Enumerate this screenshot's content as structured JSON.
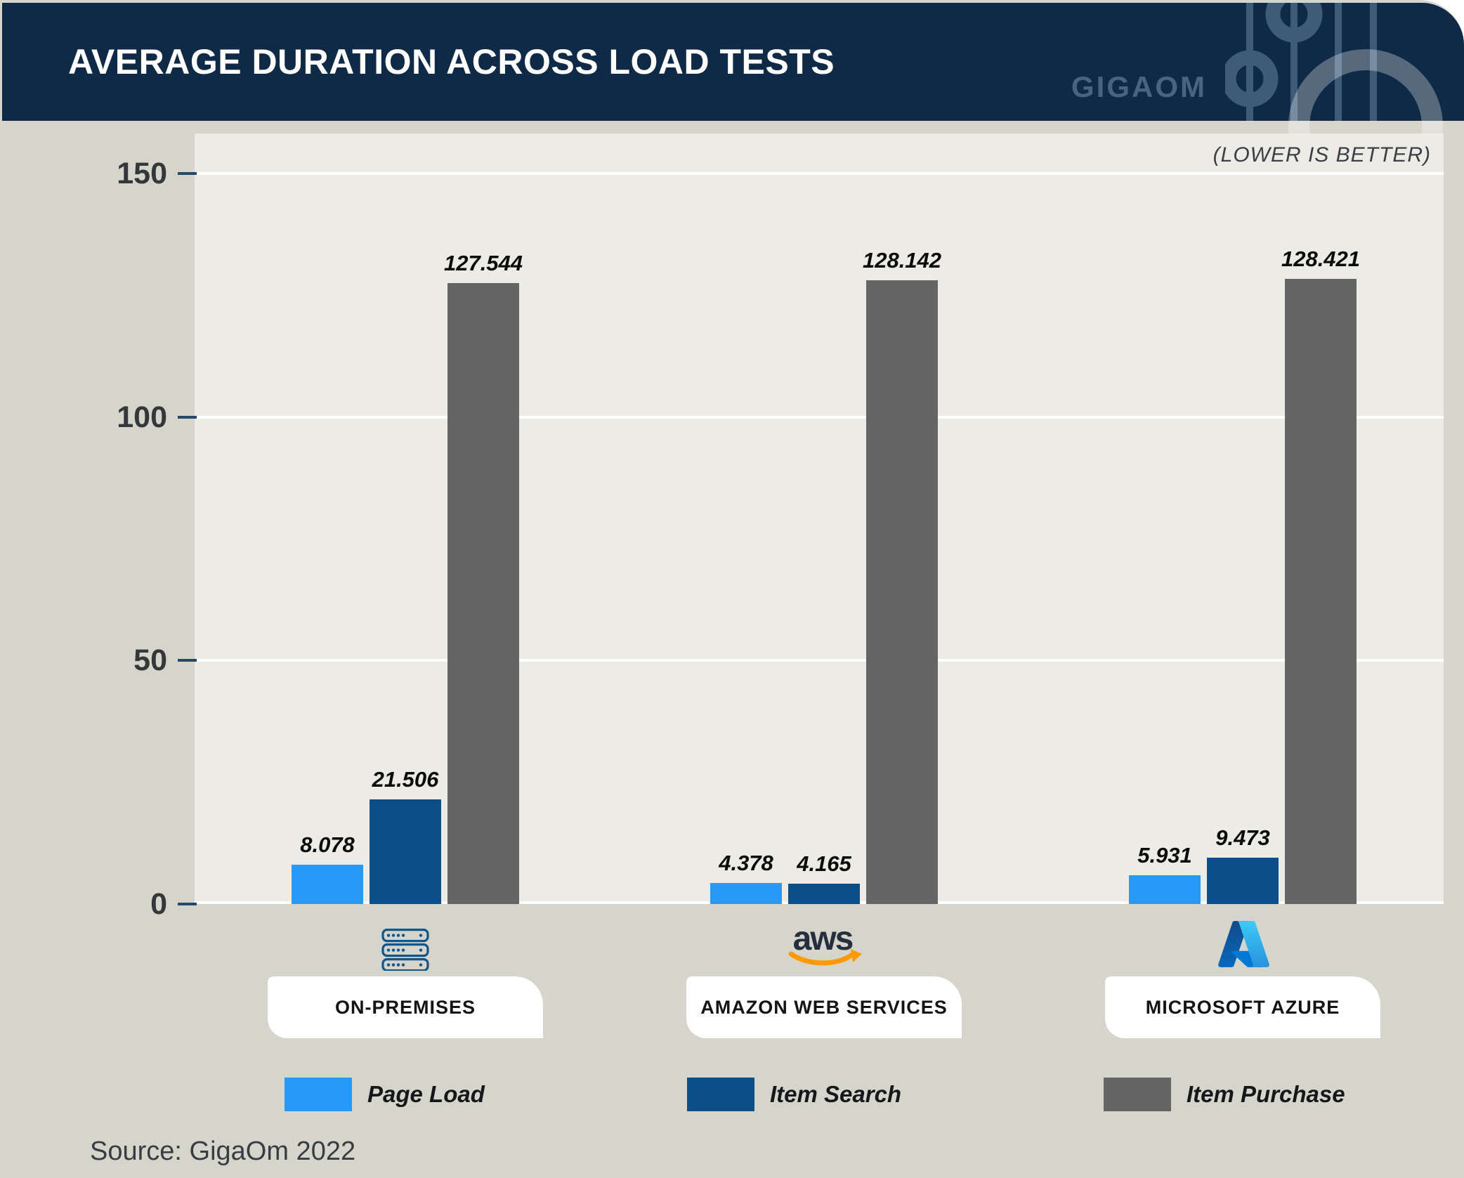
{
  "header": {
    "title": "AVERAGE DURATION ACROSS LOAD TESTS",
    "brand": "GIGAOM"
  },
  "annotation": "(LOWER IS BETTER)",
  "source": "Source: GigaOm 2022",
  "colors": {
    "header_background": "#0F2A46",
    "card_background": "#D6D5CC",
    "plot_background": "#ECEBE6",
    "page_load": "#2799F9",
    "item_search": "#0C4E87",
    "item_purchase": "#656565",
    "aws_smile_orange": "#FF9900",
    "server_icon_blue": "#10558C"
  },
  "icons": {
    "on_premises": "server-stack-icon",
    "amazon_web_services": "aws-logo-icon",
    "microsoft_azure": "azure-logo-icon",
    "brand": "gigaom-rings-icon"
  },
  "chart_data": {
    "type": "bar",
    "title": "AVERAGE DURATION ACROSS LOAD TESTS",
    "note": "(LOWER IS BETTER)",
    "categories": [
      "ON-PREMISES",
      "AMAZON WEB SERVICES",
      "MICROSOFT AZURE"
    ],
    "series": [
      {
        "name": "Page Load",
        "color": "#2799F9",
        "values": [
          8.078,
          4.378,
          5.931
        ]
      },
      {
        "name": "Item Search",
        "color": "#0C4E87",
        "values": [
          21.506,
          4.165,
          9.473
        ]
      },
      {
        "name": "Item Purchase",
        "color": "#656565",
        "values": [
          127.544,
          128.142,
          128.421
        ]
      }
    ],
    "xlabel": "",
    "ylabel": "",
    "ylim": [
      0,
      150
    ],
    "yticks": [
      0,
      50,
      100,
      150
    ],
    "grid": true,
    "legend_position": "bottom",
    "value_labels": true
  }
}
